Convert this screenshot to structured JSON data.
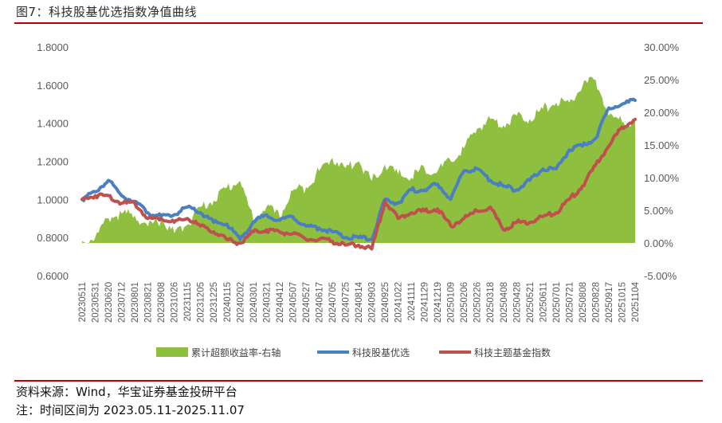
{
  "figure": {
    "title": "图7：科技股基优选指数净值曲线",
    "source": "资料来源：Wind，华宝证券基金投研平台",
    "note": "注：时间区间为 2023.05.11-2025.11.07"
  },
  "colors": {
    "rule": "#c00000",
    "area": "#8fbf3f",
    "blue": "#4a7fc1",
    "red": "#c0504d"
  },
  "chart_data": {
    "type": "line",
    "left_axis": {
      "ylim": [
        0.6,
        1.8
      ],
      "ticks": [
        "0.6000",
        "0.8000",
        "1.0000",
        "1.2000",
        "1.4000",
        "1.6000",
        "1.8000"
      ]
    },
    "right_axis": {
      "ylim": [
        -5,
        30
      ],
      "ticks": [
        "-5.00%",
        "0.00%",
        "5.00%",
        "10.00%",
        "15.00%",
        "20.00%",
        "25.00%",
        "30.00%"
      ]
    },
    "x_tick_labels": [
      "20230511",
      "20230531",
      "20230620",
      "20230712",
      "20230801",
      "20230821",
      "20230908",
      "20231026",
      "20231115",
      "20231205",
      "20231225",
      "20240115",
      "20240202",
      "20240301",
      "20240321",
      "20240412",
      "20240507",
      "20240527",
      "20240617",
      "20240705",
      "20240725",
      "20240814",
      "20240903",
      "20240925",
      "20241022",
      "20241111",
      "20241129",
      "20241219",
      "20250109",
      "20250206",
      "20250226",
      "20250318",
      "20250408",
      "20250428",
      "20250521",
      "20250611",
      "20250701",
      "20250721",
      "20250808",
      "20250828",
      "20250917",
      "20251015",
      "20251104"
    ],
    "series": [
      {
        "name": "累计超额收益率-右轴",
        "type": "area",
        "axis": "right",
        "unit": "%",
        "x": [
          0,
          1,
          2,
          3,
          4,
          5,
          6,
          7,
          8,
          9,
          10,
          11,
          12,
          13,
          14,
          15,
          16,
          17,
          18,
          19,
          20,
          21,
          22,
          23,
          24,
          25,
          26,
          27,
          28,
          29,
          30,
          31,
          32,
          33,
          34,
          35,
          36,
          37,
          38,
          39,
          40,
          41,
          42
        ],
        "values": [
          0.3,
          0.8,
          3.8,
          4.5,
          4.2,
          2.5,
          3.5,
          1.5,
          2.8,
          5.5,
          6.5,
          8.5,
          9.5,
          3.5,
          5.5,
          4.0,
          8.0,
          8.5,
          11.0,
          13.0,
          11.5,
          12.5,
          9.5,
          12.0,
          10.5,
          10.0,
          11.5,
          11.0,
          12.5,
          14.5,
          17.5,
          19.0,
          18.0,
          19.5,
          19.0,
          20.5,
          21.5,
          21.5,
          24.0,
          25.0,
          19.5,
          18.5,
          18.5
        ]
      },
      {
        "name": "科技股基优选",
        "type": "line",
        "axis": "left",
        "x": [
          0,
          1,
          2,
          3,
          4,
          5,
          6,
          7,
          8,
          9,
          10,
          11,
          12,
          13,
          14,
          15,
          16,
          17,
          18,
          19,
          20,
          21,
          22,
          23,
          24,
          25,
          26,
          27,
          28,
          29,
          30,
          31,
          32,
          33,
          34,
          35,
          36,
          37,
          38,
          39,
          40,
          41,
          42
        ],
        "values": [
          1.0,
          1.04,
          1.1,
          1.02,
          0.99,
          0.93,
          0.91,
          0.92,
          0.96,
          0.93,
          0.88,
          0.87,
          0.79,
          0.88,
          0.92,
          0.89,
          0.91,
          0.86,
          0.85,
          0.83,
          0.8,
          0.8,
          0.79,
          1.0,
          0.98,
          1.05,
          1.05,
          1.08,
          1.0,
          1.15,
          1.16,
          1.1,
          1.07,
          1.05,
          1.1,
          1.16,
          1.16,
          1.26,
          1.28,
          1.32,
          1.48,
          1.5,
          1.52
        ]
      },
      {
        "name": "科技主题基金指数",
        "type": "line",
        "axis": "left",
        "x": [
          0,
          1,
          2,
          3,
          4,
          5,
          6,
          7,
          8,
          9,
          10,
          11,
          12,
          13,
          14,
          15,
          16,
          17,
          18,
          19,
          20,
          21,
          22,
          23,
          24,
          25,
          26,
          27,
          28,
          29,
          30,
          31,
          32,
          33,
          34,
          35,
          36,
          37,
          38,
          39,
          40,
          41,
          42
        ],
        "values": [
          1.0,
          1.02,
          1.02,
          0.98,
          0.98,
          0.9,
          0.9,
          0.88,
          0.9,
          0.86,
          0.83,
          0.79,
          0.77,
          0.83,
          0.84,
          0.83,
          0.82,
          0.79,
          0.79,
          0.78,
          0.76,
          0.76,
          0.74,
          0.99,
          0.9,
          0.93,
          0.94,
          0.95,
          0.86,
          0.9,
          0.94,
          0.96,
          0.84,
          0.88,
          0.88,
          0.91,
          0.93,
          1.0,
          1.07,
          1.18,
          1.28,
          1.38,
          1.42
        ]
      }
    ]
  }
}
